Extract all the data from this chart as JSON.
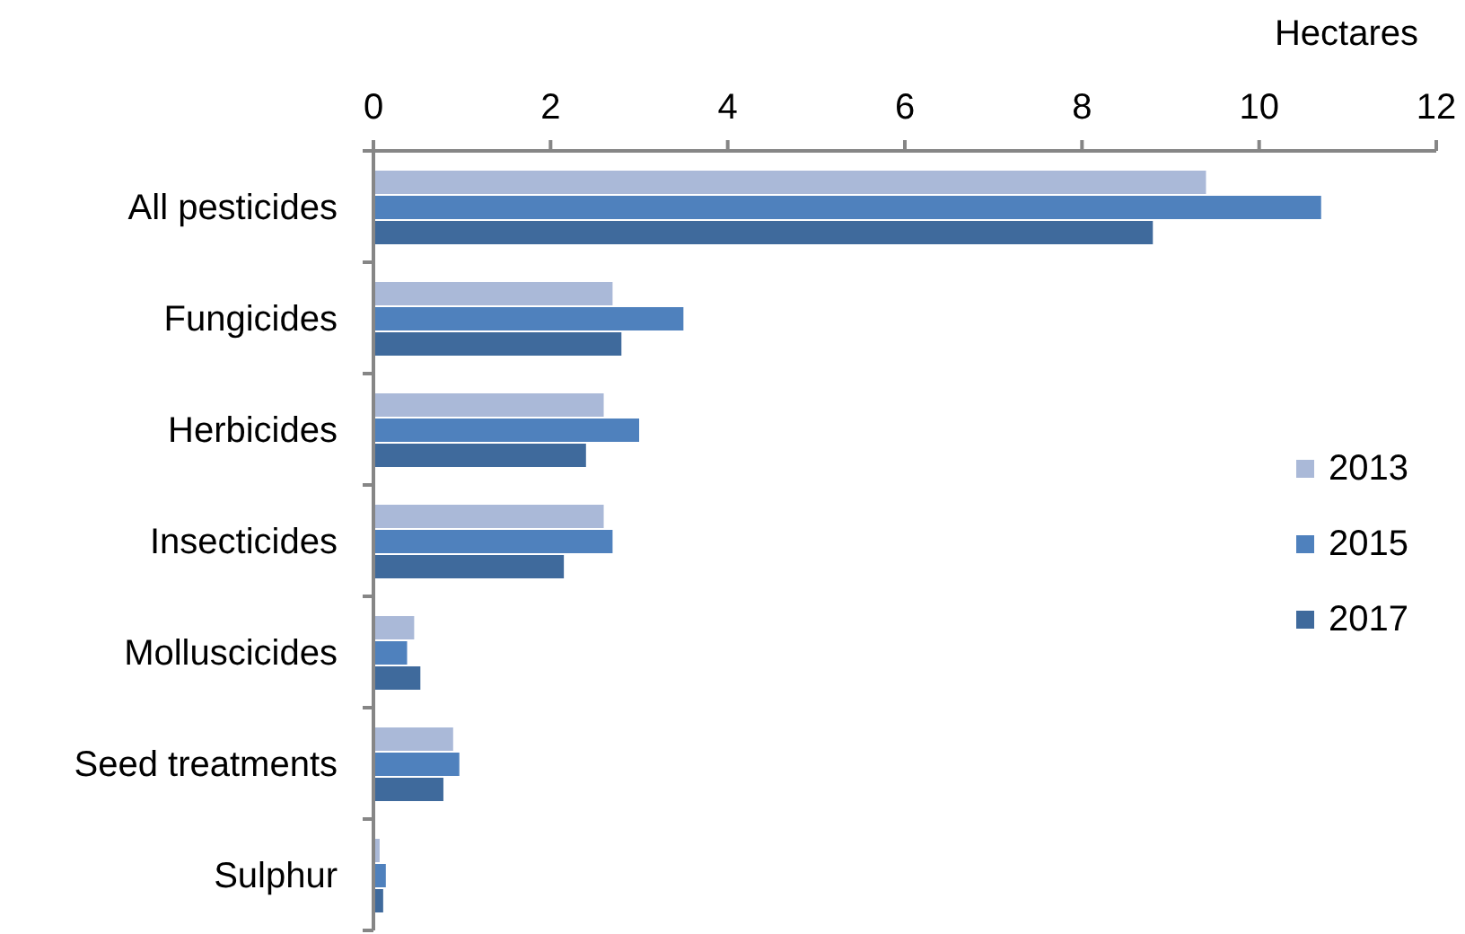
{
  "chart_data": {
    "type": "bar",
    "orientation": "horizontal",
    "xlabel": "Hectares",
    "categories": [
      "All pesticides",
      "Fungicides",
      "Herbicides",
      "Insecticides",
      "Molluscicides",
      "Seed treatments",
      "Sulphur"
    ],
    "series": [
      {
        "name": "2013",
        "color": "#aab9d8",
        "values": [
          9.4,
          2.7,
          2.6,
          2.6,
          0.46,
          0.9,
          0.07
        ]
      },
      {
        "name": "2015",
        "color": "#4f81bd",
        "values": [
          10.7,
          3.5,
          3.0,
          2.7,
          0.38,
          0.97,
          0.14
        ]
      },
      {
        "name": "2017",
        "color": "#3f6a9c",
        "values": [
          8.8,
          2.8,
          2.4,
          2.15,
          0.53,
          0.79,
          0.11
        ]
      }
    ],
    "xlim": [
      0,
      12
    ],
    "xticks": [
      0,
      2,
      4,
      6,
      8,
      10,
      12
    ],
    "grid": false,
    "legend": "right"
  }
}
